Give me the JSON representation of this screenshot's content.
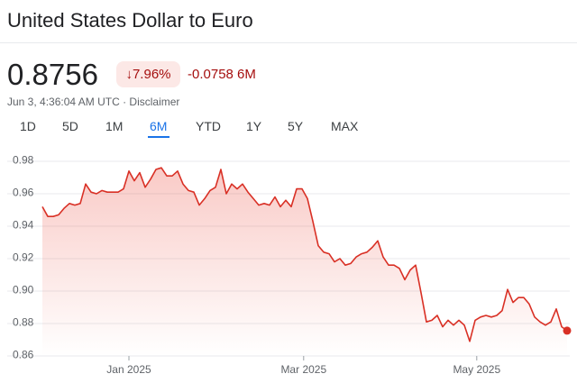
{
  "header": {
    "title": "United States Dollar to Euro"
  },
  "quote": {
    "price": "0.8756",
    "change_percent": "7.96%",
    "change": "-0.0758",
    "period": "6M",
    "timestamp": "Jun 3, 4:36:04 AM UTC",
    "disclaimer": "Disclaimer"
  },
  "tabs": {
    "items": [
      "1D",
      "5D",
      "1M",
      "6M",
      "YTD",
      "1Y",
      "5Y",
      "MAX"
    ],
    "active": "6M"
  },
  "chart_data": {
    "type": "line",
    "color": "#d93025",
    "grid": true,
    "values": [
      0.952,
      0.946,
      0.946,
      0.947,
      0.951,
      0.954,
      0.953,
      0.954,
      0.966,
      0.961,
      0.96,
      0.962,
      0.961,
      0.961,
      0.961,
      0.963,
      0.974,
      0.968,
      0.973,
      0.964,
      0.969,
      0.975,
      0.976,
      0.971,
      0.971,
      0.974,
      0.966,
      0.962,
      0.961,
      0.953,
      0.957,
      0.962,
      0.964,
      0.975,
      0.96,
      0.966,
      0.963,
      0.966,
      0.961,
      0.957,
      0.953,
      0.954,
      0.953,
      0.958,
      0.952,
      0.956,
      0.952,
      0.963,
      0.963,
      0.957,
      0.943,
      0.928,
      0.924,
      0.923,
      0.918,
      0.92,
      0.916,
      0.917,
      0.921,
      0.923,
      0.924,
      0.927,
      0.931,
      0.921,
      0.916,
      0.916,
      0.914,
      0.907,
      0.913,
      0.916,
      0.899,
      0.881,
      0.882,
      0.885,
      0.878,
      0.882,
      0.879,
      0.882,
      0.879,
      0.869,
      0.882,
      0.884,
      0.885,
      0.884,
      0.885,
      0.888,
      0.901,
      0.893,
      0.896,
      0.896,
      0.892,
      0.884,
      0.881,
      0.879,
      0.881,
      0.889,
      0.878,
      0.8756
    ],
    "xlim": [
      0,
      97
    ],
    "xticks": [
      {
        "value": 16,
        "label": "Jan 2025"
      },
      {
        "value": 48.3,
        "label": "Mar 2025"
      },
      {
        "value": 80.3,
        "label": "May 2025"
      }
    ],
    "ylim": [
      0.86,
      0.98
    ],
    "yticks": [
      0.86,
      0.88,
      {
        "value": 0.9,
        "label": "0.90"
      },
      0.92,
      0.94,
      0.96,
      0.98
    ]
  }
}
